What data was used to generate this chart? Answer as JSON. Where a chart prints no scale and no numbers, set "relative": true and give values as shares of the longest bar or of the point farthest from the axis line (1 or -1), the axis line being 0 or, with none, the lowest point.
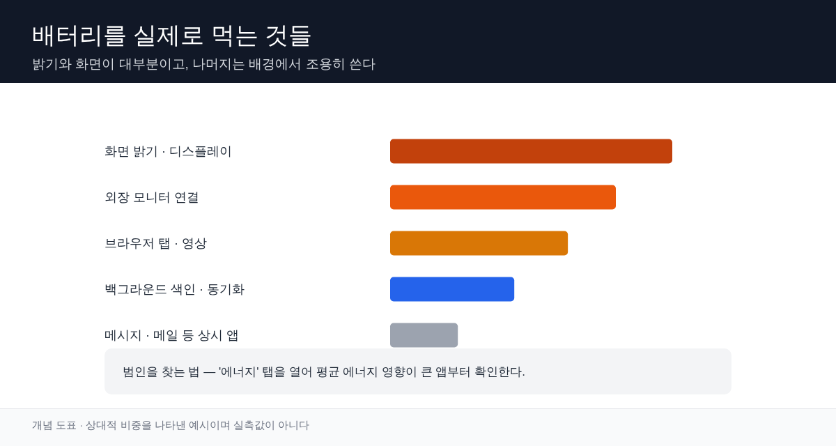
{
  "chart_data": {
    "type": "bar",
    "orientation": "horizontal",
    "relative": true,
    "title": "배터리를 실제로 먹는 것들",
    "subtitle": "밝기와 화면이 대부분이고, 나머지는 배경에서 조용히 쓴다",
    "categories": [
      "화면 밝기 · 디스플레이",
      "외장 모니터 연결",
      "브라우저 탭 · 영상",
      "백그라운드 색인 · 동기화",
      "메시지 · 메일 등 상시 앱"
    ],
    "values": [
      1,
      0.8,
      0.63,
      0.44,
      0.24
    ],
    "colors": [
      "#c2410c",
      "#ea580c",
      "#d97706",
      "#2563eb",
      "#9ca3af"
    ],
    "annotations": [
      "범인을 찾는 법 — '에너지' 탭을 열어 평균 에너지 영향이 큰 앱부터 확인한다.",
      "개념 도표 · 상대적 비중을 나타낸 예시이며 실측값이 아니다"
    ]
  }
}
